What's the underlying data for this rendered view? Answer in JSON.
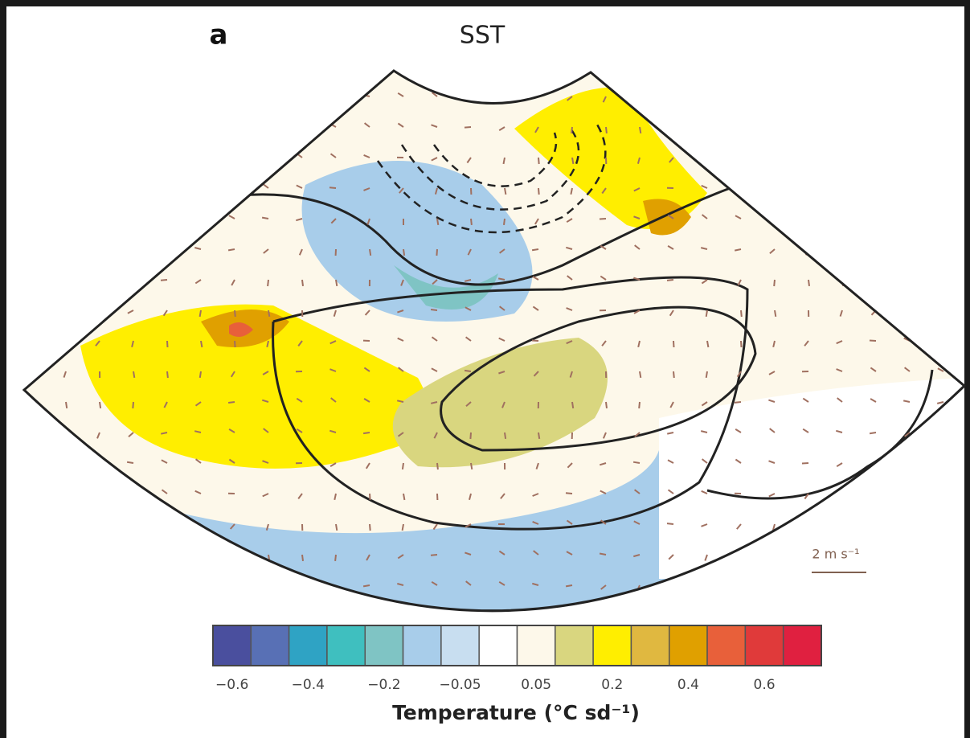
{
  "panel_label": "a",
  "title": "SST",
  "vector_scale_label": "2 m s⁻¹",
  "colorbar": {
    "colors": [
      "#4a4f9e",
      "#5870b5",
      "#2fa3c4",
      "#3fbfbf",
      "#7fc4c4",
      "#a8cdea",
      "#c8def0",
      "#ffffff",
      "#fdf8ea",
      "#d9d67f",
      "#ffee00",
      "#e0b840",
      "#e0a000",
      "#e8603a",
      "#e03a3a",
      "#e02040"
    ],
    "tick_labels": [
      "−0.6",
      "−0.4",
      "−0.2",
      "−0.05",
      "0.05",
      "0.2",
      "0.4",
      "0.6"
    ],
    "label": "Temperature (°C sd⁻¹)"
  }
}
